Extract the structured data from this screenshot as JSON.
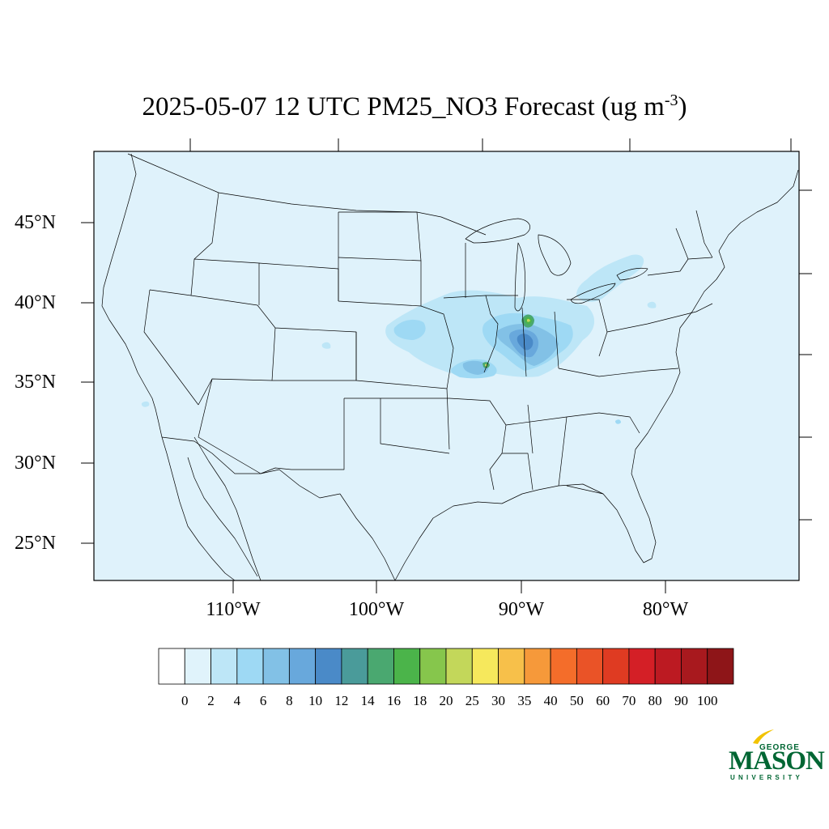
{
  "title": {
    "main": "2025-05-07 12 UTC PM25_NO3 Forecast (ug m",
    "sup": "-3",
    "close": ")"
  },
  "map": {
    "ocean_color": "#dff2fb",
    "lat_labels": [
      "45°N",
      "40°N",
      "35°N",
      "30°N",
      "25°N"
    ],
    "lon_labels": [
      "110°W",
      "100°W",
      "90°W",
      "80°W"
    ]
  },
  "colorbar": {
    "colors": [
      "#ffffff",
      "#e0f3fb",
      "#bde6f7",
      "#9ed9f4",
      "#82c1e6",
      "#68a8dc",
      "#4a8ac8",
      "#4a9b9a",
      "#4aa870",
      "#4bb44a",
      "#86c64c",
      "#c3d75a",
      "#f6e85c",
      "#f7c04a",
      "#f6993a",
      "#f46d2a",
      "#ea5327",
      "#df3b22",
      "#d41f26",
      "#bc1a22",
      "#a8191e",
      "#8e1518"
    ],
    "labels": [
      "0",
      "2",
      "4",
      "6",
      "8",
      "10",
      "12",
      "14",
      "16",
      "18",
      "20",
      "25",
      "30",
      "35",
      "40",
      "50",
      "60",
      "70",
      "80",
      "90",
      "100"
    ]
  },
  "logo": {
    "line1": "GEORGE",
    "line2": "MASON",
    "line3": "UNIVERSITY",
    "color": "#006633",
    "accent": "#f2c300"
  }
}
